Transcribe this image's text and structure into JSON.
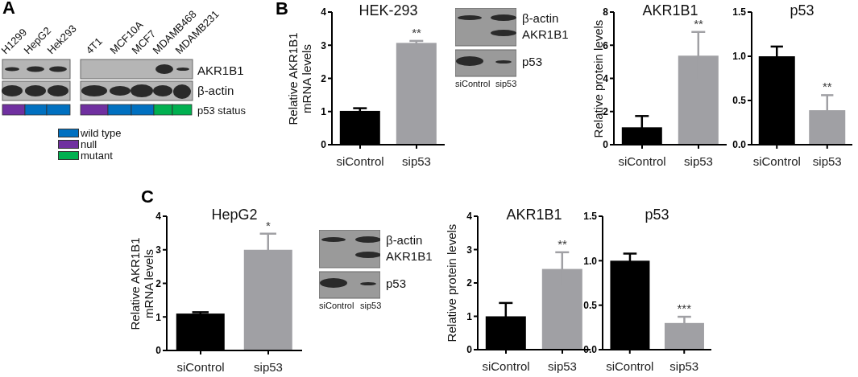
{
  "chart_data": [
    {
      "type": "other",
      "annotations": [
        "A",
        "H1299",
        "HepG2",
        "Hek293",
        "4T1",
        "MCF10A",
        "MCF7",
        "MDAMB468",
        "MDAMB231",
        "AKR1B1",
        "β-actin",
        "p53 status",
        "wild type",
        "null",
        "mutant"
      ]
    },
    {
      "type": "bar",
      "title": "HEK-293",
      "ylabel": "Relative AKR1B1\nmRNA levels",
      "categories": [
        "siControl",
        "sip53"
      ],
      "values": [
        1.02,
        3.07
      ],
      "errors": [
        0.08,
        0.06
      ],
      "colors": [
        "#000000",
        "#a0a0a4"
      ],
      "ylim": [
        0,
        4
      ],
      "yticks": [
        0,
        1,
        2,
        3,
        4
      ],
      "annotations": [
        "**"
      ]
    },
    {
      "type": "other",
      "annotations": [
        "β-actin",
        "AKR1B1",
        "p53",
        "siControl",
        "sip53",
        "B"
      ]
    },
    {
      "type": "bar",
      "title": "AKR1B1",
      "ylabel": "Relative protein levels",
      "categories": [
        "siControl",
        "sip53"
      ],
      "values": [
        1.05,
        5.37
      ],
      "errors": [
        0.68,
        1.43
      ],
      "colors": [
        "#000000",
        "#a0a0a4"
      ],
      "ylim": [
        0,
        8
      ],
      "yticks": [
        0,
        2,
        4,
        6,
        8
      ],
      "annotations": [
        "**"
      ]
    },
    {
      "type": "bar",
      "title": "p53",
      "categories": [
        "siControl",
        "sip53"
      ],
      "values": [
        1.0,
        0.39
      ],
      "errors": [
        0.11,
        0.17
      ],
      "colors": [
        "#000000",
        "#a0a0a4"
      ],
      "ylim": [
        0,
        1.5
      ],
      "yticks": [
        {
          "value": 0,
          "label": "0.0"
        },
        {
          "value": 0.5,
          "label": "0.5"
        },
        {
          "value": 1,
          "label": "1.0"
        },
        {
          "value": 1.5,
          "label": "1.5"
        }
      ],
      "annotations": [
        "**"
      ]
    },
    {
      "type": "bar",
      "title": "HepG2",
      "ylabel": "Relative AKR1B1\nmRNA levels",
      "categories": [
        "siControl",
        "sip53"
      ],
      "values": [
        1.1,
        3.0
      ],
      "errors": [
        0.04,
        0.48
      ],
      "colors": [
        "#000000",
        "#a0a0a4"
      ],
      "ylim": [
        0,
        4
      ],
      "yticks": [
        0,
        1,
        2,
        3,
        4
      ],
      "annotations": [
        "*"
      ]
    },
    {
      "type": "other",
      "annotations": [
        "β-actin",
        "AKR1B1",
        "p53",
        "siControl",
        "sip53",
        "C"
      ]
    },
    {
      "type": "bar",
      "title": "AKR1B1",
      "ylabel": "Relative protein levels",
      "categories": [
        "siControl",
        "sip53"
      ],
      "values": [
        1.0,
        2.42
      ],
      "errors": [
        0.4,
        0.5
      ],
      "colors": [
        "#000000",
        "#a0a0a4"
      ],
      "ylim": [
        0,
        4
      ],
      "yticks": [
        0,
        1,
        2,
        3,
        4
      ],
      "annotations": [
        "**"
      ]
    },
    {
      "type": "bar",
      "title": "p53",
      "categories": [
        "siControl",
        "sip53"
      ],
      "values": [
        1.0,
        0.3
      ],
      "errors": [
        0.08,
        0.07
      ],
      "colors": [
        "#000000",
        "#a0a0a4"
      ],
      "ylim": [
        0,
        1.5
      ],
      "yticks": [
        {
          "value": 0,
          "label": "0.0"
        },
        {
          "value": 0.5,
          "label": "0.5"
        },
        {
          "value": 1,
          "label": "1.0"
        },
        {
          "value": 1.5,
          "label": "1.5"
        }
      ],
      "annotations": [
        "***"
      ]
    }
  ]
}
